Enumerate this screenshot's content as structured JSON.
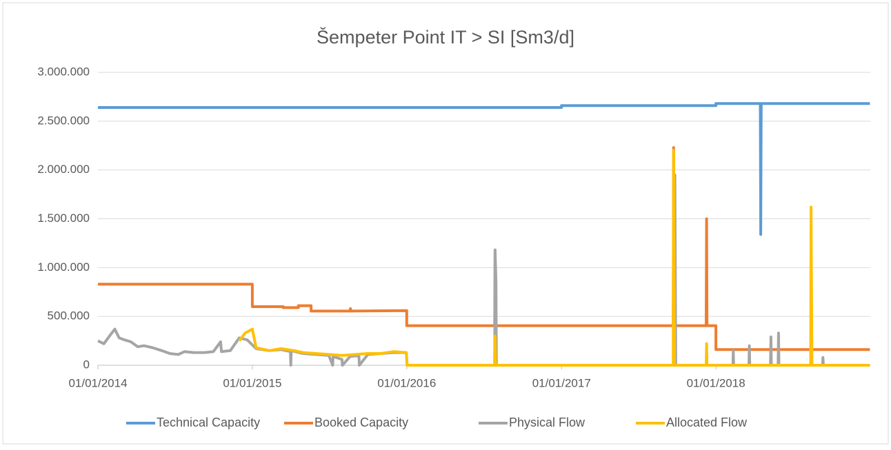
{
  "chart_data": {
    "type": "line",
    "title": "Šempeter Point IT > SI [Sm3/d]",
    "xlim": [
      "2014-01-01",
      "2019-01-01"
    ],
    "xticks": [
      {
        "value": "2014-01-01",
        "label": "01/01/2014"
      },
      {
        "value": "2015-01-01",
        "label": "01/01/2015"
      },
      {
        "value": "2016-01-01",
        "label": "01/01/2016"
      },
      {
        "value": "2017-01-01",
        "label": "01/01/2017"
      },
      {
        "value": "2018-01-01",
        "label": "01/01/2018"
      }
    ],
    "ylim": [
      0,
      3000000
    ],
    "yticks": [
      0,
      {
        "value": 500000,
        "label": "500.000"
      },
      {
        "value": 1000000,
        "label": "1.000.000"
      },
      {
        "value": 1500000,
        "label": "1.500.000"
      },
      {
        "value": 2000000,
        "label": "2.000.000"
      },
      {
        "value": 2500000,
        "label": "2.500.000"
      },
      {
        "value": 3000000,
        "label": "3.000.000"
      }
    ],
    "grid": true,
    "legend": "bottom",
    "series": [
      {
        "name": "Technical Capacity",
        "color": "#5b9bd5",
        "x": [
          "2014-01-01",
          "2017-01-01",
          "2017-01-01",
          "2018-01-01",
          "2018-01-01",
          "2018-04-16",
          "2018-04-17",
          "2018-04-18",
          "2018-12-31"
        ],
        "values": [
          2640000,
          2640000,
          2660000,
          2660000,
          2680000,
          2680000,
          1340000,
          2680000,
          2680000
        ]
      },
      {
        "name": "Booked Capacity",
        "color": "#ed7d31",
        "x": [
          "2014-01-01",
          "2015-01-01",
          "2015-01-01",
          "2015-03-15",
          "2015-03-15",
          "2015-04-20",
          "2015-04-20",
          "2015-05-20",
          "2015-05-20",
          "2015-08-20",
          "2015-08-21",
          "2015-08-22",
          "2016-01-01",
          "2016-01-01",
          "2016-07-27",
          "2016-07-28",
          "2016-07-29",
          "2017-09-22",
          "2017-09-23",
          "2017-09-25",
          "2017-12-09",
          "2017-12-10",
          "2017-12-11",
          "2018-01-01",
          "2018-01-01",
          "2018-12-31"
        ],
        "values": [
          830000,
          830000,
          600000,
          600000,
          590000,
          590000,
          610000,
          610000,
          555000,
          555000,
          580000,
          555000,
          560000,
          405000,
          405000,
          1180000,
          405000,
          405000,
          2230000,
          405000,
          405000,
          1500000,
          405000,
          405000,
          160000,
          160000
        ]
      },
      {
        "name": "Physical Flow",
        "color": "#a5a5a5",
        "x": [
          "2014-01-01",
          "2014-01-15",
          "2014-02-01",
          "2014-02-10",
          "2014-02-20",
          "2014-03-05",
          "2014-03-20",
          "2014-04-05",
          "2014-04-20",
          "2014-05-10",
          "2014-06-01",
          "2014-06-20",
          "2014-07-10",
          "2014-07-25",
          "2014-08-15",
          "2014-09-10",
          "2014-10-01",
          "2014-10-18",
          "2014-10-20",
          "2014-11-10",
          "2014-12-01",
          "2014-12-20",
          "2015-01-10",
          "2015-02-10",
          "2015-03-10",
          "2015-04-01",
          "2015-04-02",
          "2015-04-03",
          "2015-05-01",
          "2015-06-01",
          "2015-07-01",
          "2015-07-10",
          "2015-07-11",
          "2015-08-01",
          "2015-08-02",
          "2015-08-20",
          "2015-09-10",
          "2015-09-11",
          "2015-10-01",
          "2015-11-01",
          "2015-12-01",
          "2015-12-31",
          "2016-01-02",
          "2016-07-27",
          "2016-07-28",
          "2016-07-30",
          "2016-07-31",
          "2017-09-23",
          "2017-09-26",
          "2017-09-28",
          "2018-02-10",
          "2018-02-11",
          "2018-02-12",
          "2018-03-20",
          "2018-03-21",
          "2018-03-22",
          "2018-05-10",
          "2018-05-11",
          "2018-05-12",
          "2018-05-28",
          "2018-05-29",
          "2018-05-30",
          "2018-09-10",
          "2018-09-11",
          "2018-09-12",
          "2018-12-31"
        ],
        "values": [
          250000,
          220000,
          320000,
          370000,
          280000,
          260000,
          240000,
          190000,
          200000,
          180000,
          150000,
          120000,
          110000,
          140000,
          130000,
          130000,
          140000,
          240000,
          140000,
          150000,
          280000,
          260000,
          170000,
          150000,
          160000,
          140000,
          0,
          150000,
          120000,
          110000,
          100000,
          0,
          90000,
          60000,
          0,
          90000,
          100000,
          0,
          110000,
          120000,
          130000,
          130000,
          0,
          0,
          1180000,
          850000,
          0,
          0,
          1950000,
          0,
          0,
          150000,
          0,
          0,
          200000,
          0,
          0,
          290000,
          0,
          0,
          330000,
          0,
          0,
          80000,
          0,
          0
        ]
      },
      {
        "name": "Allocated Flow",
        "color": "#ffc000",
        "x": [
          "2014-12-01",
          "2014-12-15",
          "2015-01-01",
          "2015-01-10",
          "2015-02-10",
          "2015-03-10",
          "2015-04-10",
          "2015-05-01",
          "2015-06-01",
          "2015-07-01",
          "2015-08-01",
          "2015-09-01",
          "2015-10-01",
          "2015-11-01",
          "2015-12-01",
          "2015-12-31",
          "2016-01-02",
          "2016-07-27",
          "2016-07-28",
          "2016-07-29",
          "2017-09-22",
          "2017-09-23",
          "2017-09-25",
          "2017-12-09",
          "2017-12-10",
          "2017-12-11",
          "2018-08-13",
          "2018-08-14",
          "2018-08-16",
          "2018-12-31"
        ],
        "values": [
          250000,
          330000,
          370000,
          180000,
          150000,
          170000,
          150000,
          130000,
          120000,
          110000,
          100000,
          110000,
          120000,
          120000,
          140000,
          130000,
          0,
          0,
          300000,
          0,
          0,
          2200000,
          0,
          0,
          220000,
          0,
          0,
          1620000,
          0,
          0
        ]
      }
    ]
  }
}
